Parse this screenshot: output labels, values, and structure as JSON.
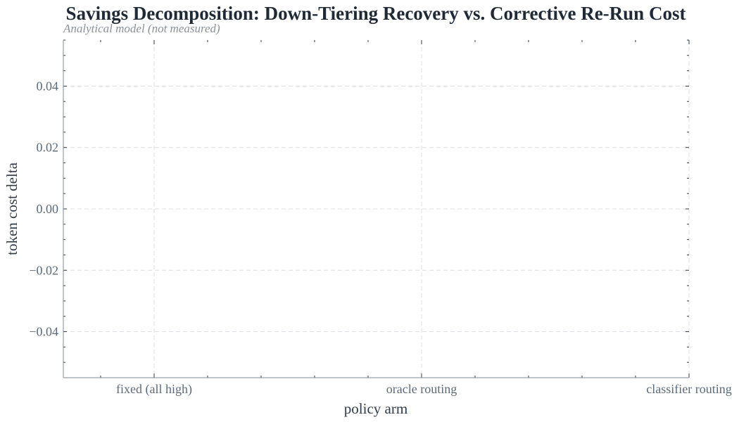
{
  "chart_data": {
    "type": "bar",
    "title": "Savings Decomposition: Down-Tiering Recovery vs. Corrective Re-Run Cost",
    "subtitle": "Analytical model (not measured)",
    "xlabel": "policy arm",
    "ylabel": "token cost delta",
    "categories": [
      "fixed (all high)",
      "oracle routing",
      "classifier routing"
    ],
    "series": [],
    "ylim": [
      -0.055,
      0.055
    ],
    "yticks": [
      -0.04,
      -0.02,
      0.0,
      0.02,
      0.04
    ],
    "ytick_labels": [
      "−0.04",
      "−0.02",
      "0.00",
      "0.02",
      "0.04"
    ],
    "grid": true
  }
}
